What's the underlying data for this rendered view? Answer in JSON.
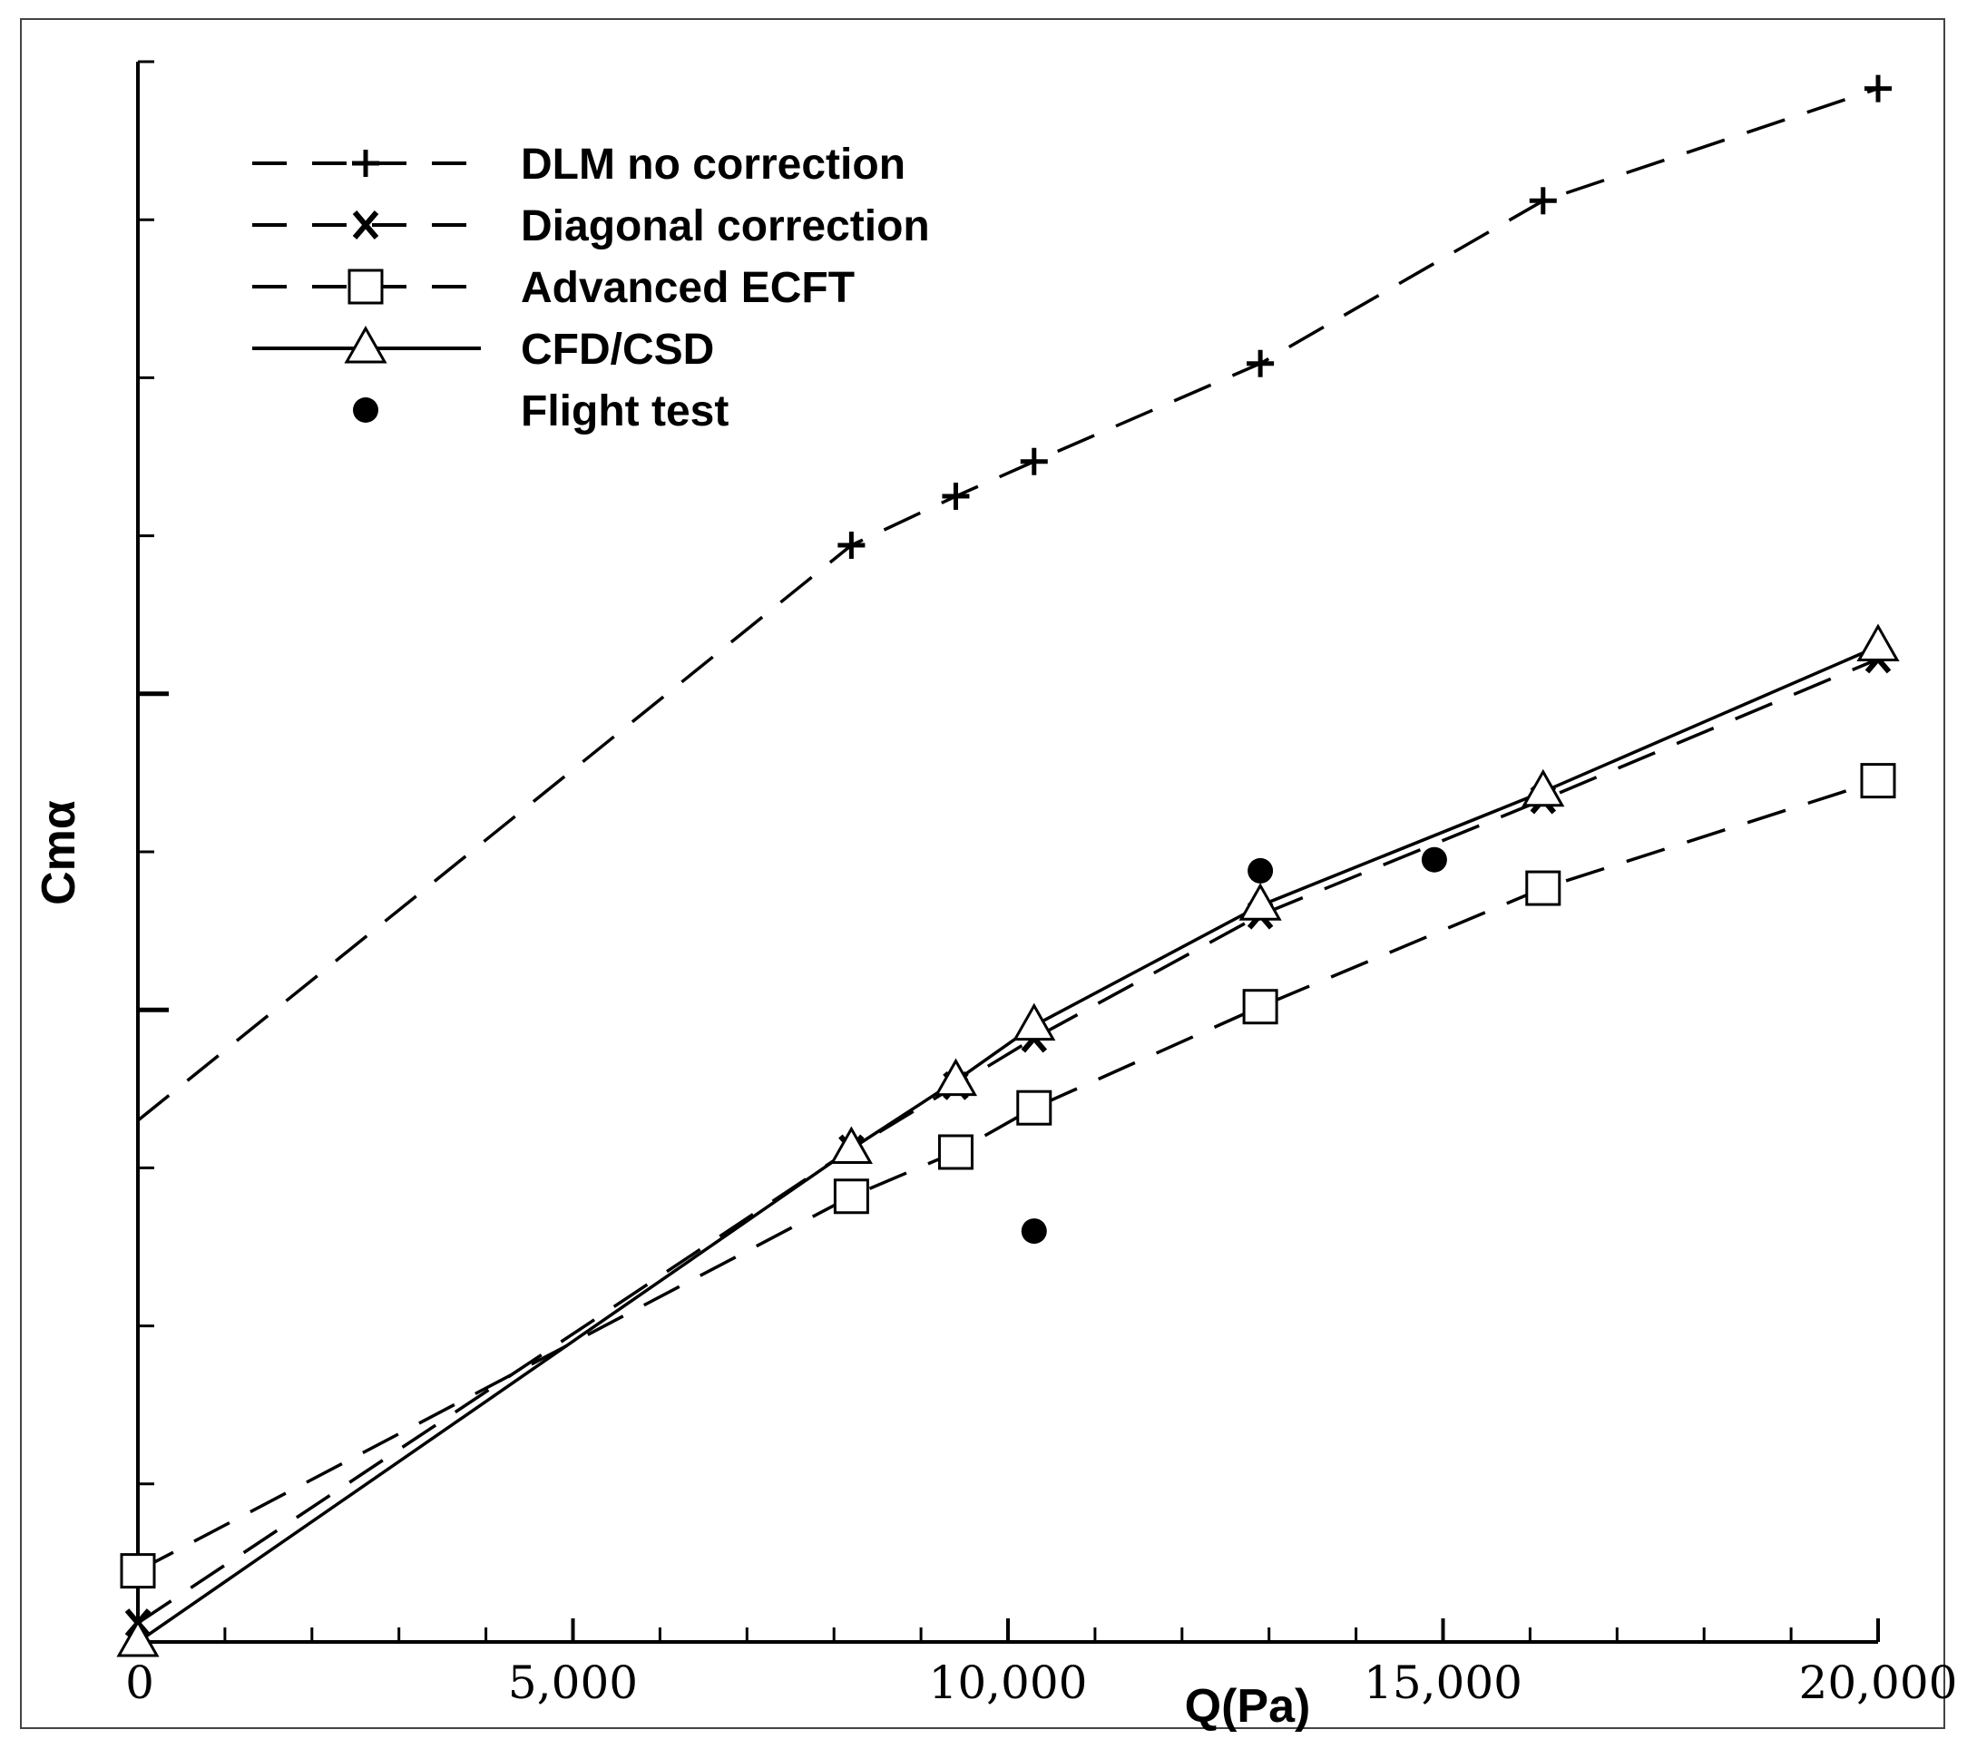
{
  "chart_data": {
    "type": "line",
    "title": "",
    "xlabel": "Q(Pa)",
    "ylabel": "Cmα",
    "xlim": [
      0,
      20000
    ],
    "ylim": [
      0,
      10
    ],
    "x_ticks": [
      {
        "value": 0,
        "label": "0"
      },
      {
        "value": 5000,
        "label": "5,000"
      },
      {
        "value": 10000,
        "label": "10,000"
      },
      {
        "value": 15000,
        "label": "15,000"
      },
      {
        "value": 20000,
        "label": "20,000"
      }
    ],
    "x_minor_step": 1000,
    "y_ticks": [
      0,
      1,
      2,
      3,
      4,
      5,
      6,
      7,
      8,
      9,
      10
    ],
    "y_major_ticks": [
      4,
      6
    ],
    "y_tick_labels_shown": false,
    "grid": false,
    "legend_position": "top-left",
    "series": [
      {
        "name": "DLM no correction",
        "line": "dashed",
        "marker": "plus",
        "color": "#000000",
        "x": [
          8200,
          9400,
          10300,
          12900,
          16150,
          20000
        ],
        "y": [
          6.94,
          7.25,
          7.47,
          8.09,
          9.12,
          9.83
        ]
      },
      {
        "name": "Diagonal correction",
        "line": "dashed",
        "marker": "x",
        "color": "#000000",
        "x": [
          0,
          8200,
          9400,
          10300,
          12900,
          16150,
          20000
        ],
        "y": [
          0.12,
          3.12,
          3.52,
          3.82,
          4.6,
          5.33,
          6.22
        ]
      },
      {
        "name": "Advanced ECFT",
        "line": "dashed",
        "marker": "open-square",
        "color": "#000000",
        "x": [
          0,
          8200,
          9400,
          10300,
          12900,
          16150,
          20000
        ],
        "y": [
          0.45,
          2.82,
          3.1,
          3.38,
          4.02,
          4.77,
          5.45
        ]
      },
      {
        "name": "CFD/CSD",
        "line": "solid",
        "marker": "open-triangle",
        "color": "#000000",
        "x": [
          0,
          8200,
          9400,
          10300,
          12900,
          16150,
          20000
        ],
        "y": [
          0.0,
          3.12,
          3.55,
          3.9,
          4.66,
          5.38,
          6.3
        ]
      }
    ],
    "points": {
      "name": "Flight test",
      "marker": "filled-circle",
      "color": "#000000",
      "x": [
        10300,
        12900,
        14900
      ],
      "y": [
        2.6,
        4.88,
        4.95
      ]
    }
  }
}
